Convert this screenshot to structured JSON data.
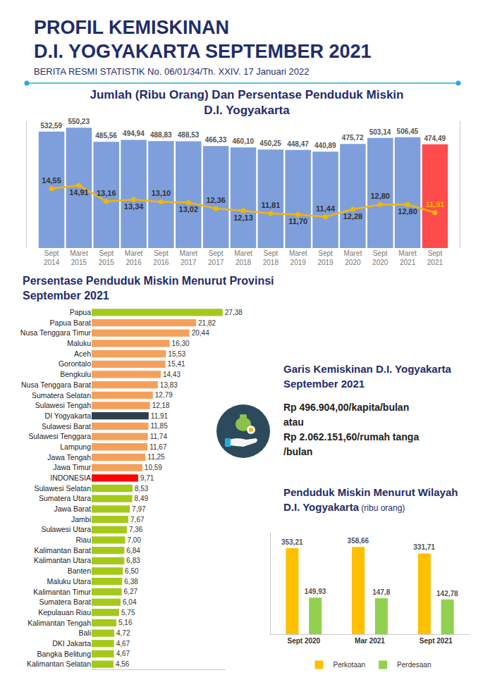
{
  "header": {
    "title": "PROFIL KEMISKINAN\nD.I. YOGYAKARTA SEPTEMBER 2021",
    "subtitle": "BERITA RESMI STATISTIK No. 06/01/34/Th. XXIV. 17 Januari 2022"
  },
  "poverty_line": {
    "title": "Garis Kemiskinan D.I. Yogyakarta\nSeptember 2021",
    "lines": [
      "Rp 496.904,00/kapita/bulan",
      "atau",
      "Rp 2.062.151,60/rumah tanga",
      "/bulan"
    ]
  },
  "chart_data": [
    {
      "type": "bar",
      "title": "Jumlah (Ribu Orang) Dan Persentase Penduduk Miskin\nD.I. Yogyakarta",
      "categories": [
        "Sept 2014",
        "Maret 2015",
        "Sept 2015",
        "Maret 2016",
        "Sept 2016",
        "Maret 2017",
        "Sept 2017",
        "Maret 2018",
        "Sept 2018",
        "Maret 2019",
        "Sept 2019",
        "Maret 2020",
        "Sept 2020",
        "Maret 2021",
        "Sept 2021"
      ],
      "series": [
        {
          "type": "bar",
          "colors": [
            "#7F9FDC",
            "#7F9FDC",
            "#7F9FDC",
            "#7F9FDC",
            "#7F9FDC",
            "#7F9FDC",
            "#7F9FDC",
            "#7F9FDC",
            "#7F9FDC",
            "#7F9FDC",
            "#7F9FDC",
            "#7F9FDC",
            "#7F9FDC",
            "#7F9FDC",
            "#FF4B4B"
          ],
          "values": [
            532.59,
            550.23,
            485.56,
            494.94,
            488.83,
            488.53,
            466.33,
            460.1,
            450.25,
            448.47,
            440.89,
            475.72,
            503.14,
            506.45,
            474.49
          ],
          "value_labels": [
            "532,59",
            "550,23",
            "485,56",
            "494,94",
            "488,83",
            "488,53",
            "466,33",
            "460,10",
            "450,25",
            "448,47",
            "440,89",
            "475,72",
            "503,14",
            "506,45",
            "474,49"
          ]
        },
        {
          "type": "line",
          "axis": "y2",
          "color": "#F2B705",
          "marker": "circle",
          "line_style": "solid",
          "values": [
            14.55,
            14.91,
            13.16,
            13.34,
            13.1,
            13.02,
            12.36,
            12.13,
            11.81,
            11.7,
            11.44,
            12.28,
            12.8,
            12.8,
            11.91
          ],
          "value_labels": [
            "14,55",
            "14,91",
            "13,16",
            "13,34",
            "13,10",
            "13,02",
            "12,36",
            "12,13",
            "11,81",
            "11,70",
            "11,44",
            "12,28",
            "12,80",
            "12,80",
            "11,91"
          ]
        }
      ],
      "ylim": [
        0,
        580
      ],
      "y2lim": [
        8,
        22
      ],
      "data_labels": true,
      "tick_labels": "x",
      "grid": false
    },
    {
      "type": "bar",
      "orientation": "horizontal",
      "title": "Persentase Penduduk Miskin Menurut Provinsi\nSeptember 2021",
      "categories": [
        "Papua",
        "Papua Barat",
        "Nusa Tenggara Timur",
        "Maluku",
        "Aceh",
        "Gorontalo",
        "Bengkulu",
        "Nusa Tenggara Barat",
        "Sumatera Selatan",
        "Sulawesi Tengah",
        "DI Yogyakarta",
        "Sulawesi Barat",
        "Sulawesi Tenggara",
        "Lampung",
        "Jawa Tengah",
        "Jawa Timur",
        "INDONESIA",
        "Sulawesi Selatan",
        "Sumatera Utara",
        "Jawa Barat",
        "Jambi",
        "Sulawesi Utara",
        "Riau",
        "Kalimantan Barat",
        "Kalimantan Utara",
        "Banten",
        "Maluku Utara",
        "Kalimantan Timur",
        "Sumatera Barat",
        "Kepulauan Riau",
        "Kalimantan Tengah",
        "Bali",
        "DKI Jakarta",
        "Bangka Belitung",
        "Kalimantan Selatan"
      ],
      "values": [
        27.38,
        21.82,
        20.44,
        16.3,
        15.53,
        15.41,
        14.43,
        13.83,
        12.79,
        12.18,
        11.91,
        11.85,
        11.74,
        11.67,
        11.25,
        10.59,
        9.71,
        8.53,
        8.49,
        7.97,
        7.67,
        7.36,
        7.0,
        6.84,
        6.83,
        6.5,
        6.38,
        6.27,
        6.04,
        5.75,
        5.16,
        4.72,
        4.67,
        4.67,
        4.56
      ],
      "value_labels": [
        "27,38",
        "21,82",
        "20,44",
        "16,30",
        "15,53",
        "15,41",
        "14,43",
        "13,83",
        "12,79",
        "12,18",
        "11,91",
        "11,85",
        "11,74",
        "11,67",
        "11,25",
        "10,59",
        "9,71",
        "8,53",
        "8,49",
        "7,97",
        "7,67",
        "7,36",
        "7,00",
        "6,84",
        "6,83",
        "6,50",
        "6,38",
        "6,27",
        "6,04",
        "5,75",
        "5,16",
        "4,72",
        "4,67",
        "4,67",
        "4,56"
      ],
      "colors": [
        "#A5C91A",
        "#F5A05A",
        "#F5A05A",
        "#F5A05A",
        "#F5A05A",
        "#F5A05A",
        "#F5A05A",
        "#F5A05A",
        "#F5A05A",
        "#F5A05A",
        "#2F3F4F",
        "#F5A05A",
        "#F5A05A",
        "#F5A05A",
        "#F5A05A",
        "#F5A05A",
        "#FF0000",
        "#A5C91A",
        "#A5C91A",
        "#A5C91A",
        "#A5C91A",
        "#A5C91A",
        "#A5C91A",
        "#A5C91A",
        "#A5C91A",
        "#A5C91A",
        "#A5C91A",
        "#A5C91A",
        "#A5C91A",
        "#A5C91A",
        "#A5C91A",
        "#A5C91A",
        "#A5C91A",
        "#A5C91A",
        "#A5C91A"
      ],
      "xlim": [
        0,
        28
      ],
      "data_labels": true,
      "tick_labels": "y",
      "grid": false
    },
    {
      "type": "bar",
      "title": "Penduduk Miskin Menurut Wilayah\nD.I. Yogyakarta",
      "subtitle": "(ribu orang)",
      "categories": [
        "Sept 2020",
        "Mar 2021",
        "Sept 2021"
      ],
      "series": [
        {
          "name": "Perkotaan",
          "color": "#FFC000",
          "values": [
            353.21,
            358.66,
            331.71
          ],
          "value_labels": [
            "353,21",
            "358,66",
            "331,71"
          ]
        },
        {
          "name": "Perdesaan",
          "color": "#92D050",
          "values": [
            149.93,
            147.8,
            142.78
          ],
          "value_labels": [
            "149,93",
            "147,8",
            "142,78"
          ]
        }
      ],
      "ylim": [
        0,
        420
      ],
      "data_labels": true,
      "tick_labels": "x",
      "legend": "bottom",
      "grid": false
    }
  ]
}
